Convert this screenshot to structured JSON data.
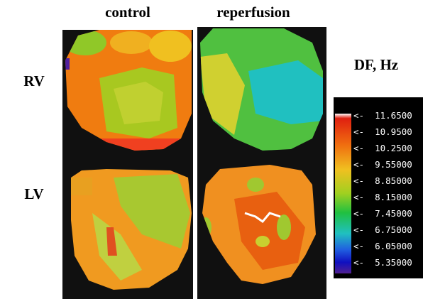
{
  "columns": [
    "control",
    "reperfusion"
  ],
  "rows": [
    "RV",
    "LV"
  ],
  "colorbar": {
    "title": "DF, Hz",
    "labels": [
      "<-  11.6500",
      "<-  10.9500",
      "<-  10.2500",
      "<-  9.55000",
      "<-  8.85000",
      "<-  8.15000",
      "<-  7.45000",
      "<-  6.75000",
      "<-  6.05000",
      "<-  5.35000"
    ]
  }
}
